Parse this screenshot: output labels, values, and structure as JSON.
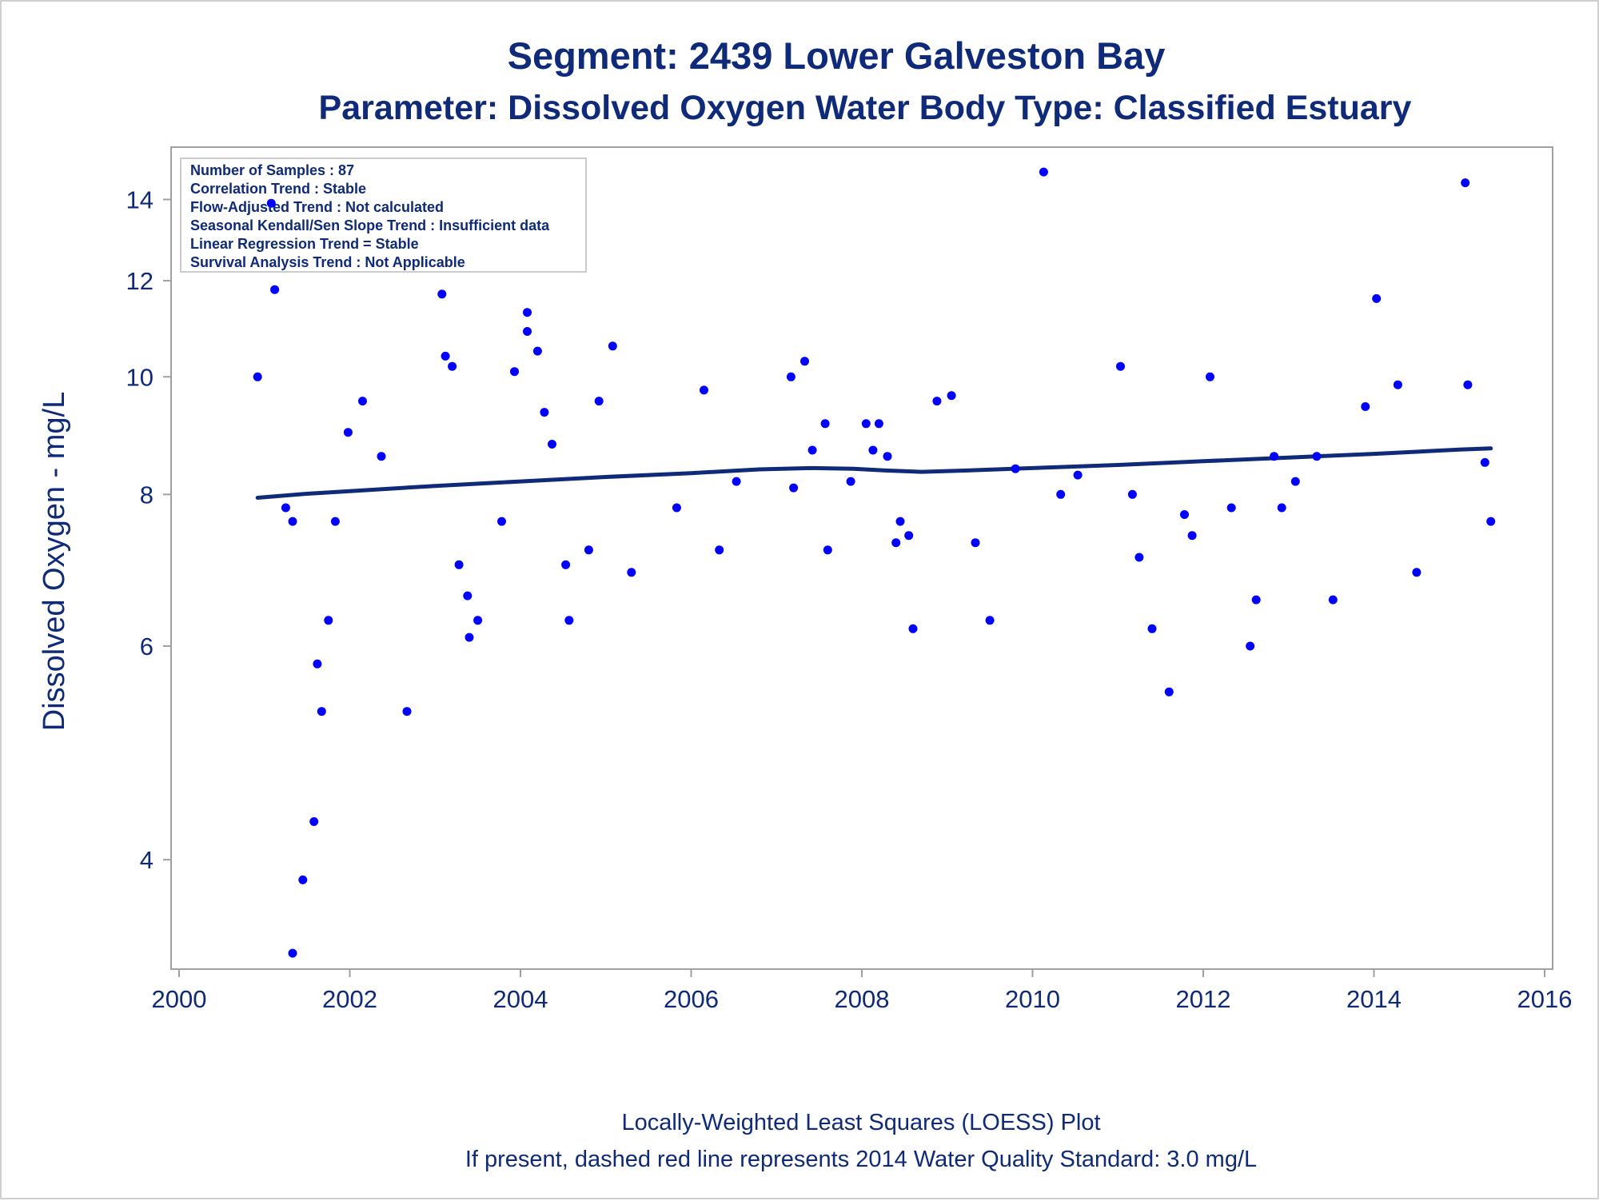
{
  "colors": {
    "text": "#0e2a78",
    "points": "#0000ff",
    "trend_line": "#0e2a78",
    "axis": "#a0a0a0",
    "frame": "#d0d0d0"
  },
  "chart_data": {
    "type": "scatter",
    "title": "Segment: 2439  Lower Galveston Bay",
    "subtitle": "Parameter: Dissolved Oxygen   Water Body Type: Classified Estuary",
    "xlabel": "",
    "ylabel": "Dissolved Oxygen - mg/L",
    "x_scale": "linear",
    "y_scale": "log",
    "xlim": [
      2000,
      2016
    ],
    "ylim": [
      3.3,
      15.0
    ],
    "x_ticks": [
      2000,
      2002,
      2004,
      2006,
      2008,
      2010,
      2012,
      2014,
      2016
    ],
    "y_ticks": [
      4,
      6,
      8,
      10,
      12,
      14
    ],
    "grid": false,
    "legend": "none",
    "stats_box": [
      "Number of Samples : 87",
      "Correlation Trend : Stable",
      "Flow-Adjusted Trend : Not calculated",
      "Seasonal Kendall/Sen Slope Trend : Insufficient data",
      "Linear Regression Trend = Stable",
      "Survival Analysis Trend : Not Applicable"
    ],
    "footnotes": [
      "Locally-Weighted Least Squares (LOESS) Plot",
      "If present, dashed red line represents 2014 Water Quality Standard: 3.0 mg/L"
    ],
    "series": [
      {
        "kind": "points",
        "points": [
          [
            2000.92,
            10.0
          ],
          [
            2001.08,
            13.9
          ],
          [
            2001.12,
            11.8
          ],
          [
            2001.25,
            7.8
          ],
          [
            2001.33,
            7.6
          ],
          [
            2001.33,
            3.35
          ],
          [
            2001.45,
            3.85
          ],
          [
            2001.58,
            4.3
          ],
          [
            2001.62,
            5.8
          ],
          [
            2001.67,
            5.3
          ],
          [
            2001.75,
            6.3
          ],
          [
            2001.83,
            7.6
          ],
          [
            2001.98,
            9.0
          ],
          [
            2002.15,
            9.55
          ],
          [
            2002.37,
            8.6
          ],
          [
            2002.67,
            5.3
          ],
          [
            2003.08,
            11.7
          ],
          [
            2003.12,
            10.4
          ],
          [
            2003.2,
            10.2
          ],
          [
            2003.28,
            7.0
          ],
          [
            2003.38,
            6.6
          ],
          [
            2003.4,
            6.1
          ],
          [
            2003.5,
            6.3
          ],
          [
            2003.78,
            7.6
          ],
          [
            2003.93,
            10.1
          ],
          [
            2004.08,
            10.9
          ],
          [
            2004.08,
            11.3
          ],
          [
            2004.2,
            10.5
          ],
          [
            2004.28,
            9.35
          ],
          [
            2004.37,
            8.8
          ],
          [
            2004.53,
            7.0
          ],
          [
            2004.57,
            6.3
          ],
          [
            2004.8,
            7.2
          ],
          [
            2004.92,
            9.55
          ],
          [
            2005.08,
            10.6
          ],
          [
            2005.3,
            6.9
          ],
          [
            2005.83,
            7.8
          ],
          [
            2006.15,
            9.75
          ],
          [
            2006.33,
            7.2
          ],
          [
            2006.53,
            8.2
          ],
          [
            2007.17,
            10.0
          ],
          [
            2007.2,
            8.1
          ],
          [
            2007.33,
            10.3
          ],
          [
            2007.42,
            8.7
          ],
          [
            2007.57,
            9.15
          ],
          [
            2007.6,
            7.2
          ],
          [
            2007.87,
            8.2
          ],
          [
            2008.05,
            9.15
          ],
          [
            2008.13,
            8.7
          ],
          [
            2008.2,
            9.15
          ],
          [
            2008.3,
            8.6
          ],
          [
            2008.4,
            7.3
          ],
          [
            2008.45,
            7.6
          ],
          [
            2008.55,
            7.4
          ],
          [
            2008.6,
            6.2
          ],
          [
            2008.88,
            9.55
          ],
          [
            2009.05,
            9.65
          ],
          [
            2009.33,
            7.3
          ],
          [
            2009.5,
            6.3
          ],
          [
            2009.8,
            8.4
          ],
          [
            2010.13,
            14.75
          ],
          [
            2010.33,
            8.0
          ],
          [
            2010.53,
            8.3
          ],
          [
            2011.03,
            10.2
          ],
          [
            2011.17,
            8.0
          ],
          [
            2011.25,
            7.1
          ],
          [
            2011.4,
            6.2
          ],
          [
            2011.6,
            5.5
          ],
          [
            2011.78,
            7.7
          ],
          [
            2011.87,
            7.4
          ],
          [
            2012.08,
            10.0
          ],
          [
            2012.33,
            7.8
          ],
          [
            2012.55,
            6.0
          ],
          [
            2012.62,
            6.55
          ],
          [
            2012.83,
            8.6
          ],
          [
            2012.92,
            7.8
          ],
          [
            2013.08,
            8.2
          ],
          [
            2013.33,
            8.6
          ],
          [
            2013.52,
            6.55
          ],
          [
            2013.9,
            9.45
          ],
          [
            2014.03,
            11.6
          ],
          [
            2014.28,
            9.85
          ],
          [
            2014.5,
            6.9
          ],
          [
            2015.07,
            14.45
          ],
          [
            2015.1,
            9.85
          ],
          [
            2015.3,
            8.5
          ],
          [
            2015.37,
            7.6
          ]
        ]
      },
      {
        "kind": "loess_line",
        "points": [
          [
            2000.92,
            7.95
          ],
          [
            2001.5,
            8.01
          ],
          [
            2002.0,
            8.05
          ],
          [
            2003.0,
            8.13
          ],
          [
            2004.0,
            8.2
          ],
          [
            2005.0,
            8.27
          ],
          [
            2006.0,
            8.33
          ],
          [
            2006.8,
            8.39
          ],
          [
            2007.4,
            8.41
          ],
          [
            2007.9,
            8.4
          ],
          [
            2008.3,
            8.37
          ],
          [
            2008.7,
            8.35
          ],
          [
            2009.2,
            8.37
          ],
          [
            2010.0,
            8.41
          ],
          [
            2011.0,
            8.46
          ],
          [
            2012.0,
            8.52
          ],
          [
            2013.0,
            8.58
          ],
          [
            2014.0,
            8.64
          ],
          [
            2015.0,
            8.71
          ],
          [
            2015.37,
            8.73
          ]
        ]
      }
    ]
  }
}
